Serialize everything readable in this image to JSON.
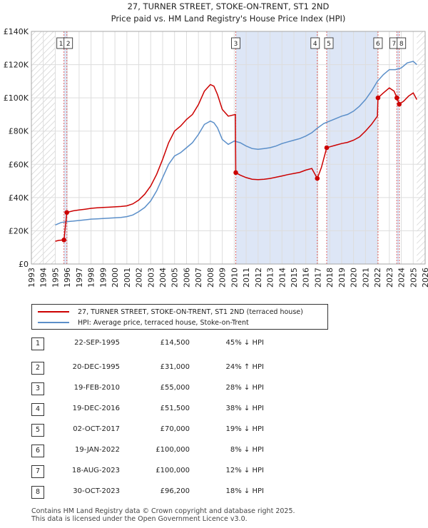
{
  "chart_data": {
    "type": "line",
    "title_line1": "27, TURNER STREET, STOKE-ON-TRENT, ST1 2ND",
    "title_line2": "Price paid vs. HM Land Registry's House Price Index (HPI)",
    "xlim": [
      1993,
      2026
    ],
    "ylim": [
      0,
      140000
    ],
    "y_ticks": [
      0,
      20000,
      40000,
      60000,
      80000,
      100000,
      120000,
      140000
    ],
    "y_tick_labels": [
      "£0",
      "£20K",
      "£40K",
      "£60K",
      "£80K",
      "£100K",
      "£120K",
      "£140K"
    ],
    "x_ticks": [
      1993,
      1994,
      1995,
      1996,
      1997,
      1998,
      1999,
      2000,
      2001,
      2002,
      2003,
      2004,
      2005,
      2006,
      2007,
      2008,
      2009,
      2010,
      2011,
      2012,
      2013,
      2014,
      2015,
      2016,
      2017,
      2018,
      2019,
      2020,
      2021,
      2022,
      2023,
      2024,
      2025,
      2026
    ],
    "data_start": 1995.0,
    "data_end": 2025.3,
    "hatch_before": 1995.0,
    "hatch_after": 2025.3,
    "shaded_periods": [
      [
        1995.73,
        1995.97
      ],
      [
        2010.13,
        2016.96
      ],
      [
        2017.75,
        2022.05
      ],
      [
        2023.63,
        2023.83
      ]
    ],
    "colors": {
      "property": "#cc0000",
      "hpi": "#5b8fc9",
      "shade": "#dde6f6",
      "marker_line": "#e06060"
    },
    "series": [
      {
        "name": "HPI: Average price, terraced house, Stoke-on-Trent",
        "points": [
          [
            1995.0,
            23500
          ],
          [
            1995.5,
            25000
          ],
          [
            1996.0,
            25500
          ],
          [
            1996.5,
            25800
          ],
          [
            1997.0,
            26200
          ],
          [
            1997.5,
            26600
          ],
          [
            1998.0,
            27000
          ],
          [
            1998.5,
            27200
          ],
          [
            1999.0,
            27400
          ],
          [
            1999.5,
            27600
          ],
          [
            2000.0,
            27800
          ],
          [
            2000.5,
            28000
          ],
          [
            2001.0,
            28500
          ],
          [
            2001.5,
            29500
          ],
          [
            2002.0,
            31500
          ],
          [
            2002.5,
            34000
          ],
          [
            2003.0,
            38000
          ],
          [
            2003.5,
            44000
          ],
          [
            2004.0,
            52000
          ],
          [
            2004.5,
            60000
          ],
          [
            2005.0,
            65000
          ],
          [
            2005.5,
            67000
          ],
          [
            2006.0,
            70000
          ],
          [
            2006.5,
            73000
          ],
          [
            2007.0,
            78000
          ],
          [
            2007.5,
            84000
          ],
          [
            2008.0,
            86000
          ],
          [
            2008.3,
            85000
          ],
          [
            2008.6,
            82000
          ],
          [
            2009.0,
            75000
          ],
          [
            2009.5,
            72000
          ],
          [
            2010.0,
            74000
          ],
          [
            2010.5,
            73000
          ],
          [
            2011.0,
            71000
          ],
          [
            2011.5,
            69500
          ],
          [
            2012.0,
            69000
          ],
          [
            2012.5,
            69500
          ],
          [
            2013.0,
            70000
          ],
          [
            2013.5,
            71000
          ],
          [
            2014.0,
            72500
          ],
          [
            2014.5,
            73500
          ],
          [
            2015.0,
            74500
          ],
          [
            2015.5,
            75500
          ],
          [
            2016.0,
            77000
          ],
          [
            2016.5,
            79000
          ],
          [
            2017.0,
            82000
          ],
          [
            2017.5,
            84500
          ],
          [
            2018.0,
            86000
          ],
          [
            2018.5,
            87500
          ],
          [
            2019.0,
            89000
          ],
          [
            2019.5,
            90000
          ],
          [
            2020.0,
            92000
          ],
          [
            2020.5,
            95000
          ],
          [
            2021.0,
            99000
          ],
          [
            2021.5,
            104000
          ],
          [
            2022.0,
            110000
          ],
          [
            2022.5,
            114000
          ],
          [
            2023.0,
            117000
          ],
          [
            2023.5,
            117000
          ],
          [
            2024.0,
            118000
          ],
          [
            2024.5,
            121000
          ],
          [
            2025.0,
            122000
          ],
          [
            2025.3,
            120000
          ]
        ]
      },
      {
        "name": "27, TURNER STREET, STOKE-ON-TRENT, ST1 2ND (terraced house)",
        "points": [
          [
            1995.0,
            13700
          ],
          [
            1995.3,
            14200
          ],
          [
            1995.73,
            14500
          ],
          [
            1995.97,
            31000
          ],
          [
            1996.5,
            32000
          ],
          [
            1997.0,
            32500
          ],
          [
            1997.5,
            33000
          ],
          [
            1998.0,
            33500
          ],
          [
            1998.5,
            33800
          ],
          [
            1999.0,
            34000
          ],
          [
            1999.5,
            34200
          ],
          [
            2000.0,
            34400
          ],
          [
            2000.5,
            34600
          ],
          [
            2001.0,
            35000
          ],
          [
            2001.5,
            36200
          ],
          [
            2002.0,
            38500
          ],
          [
            2002.5,
            42000
          ],
          [
            2003.0,
            47000
          ],
          [
            2003.5,
            54000
          ],
          [
            2004.0,
            63000
          ],
          [
            2004.5,
            73000
          ],
          [
            2005.0,
            80000
          ],
          [
            2005.5,
            83000
          ],
          [
            2006.0,
            87000
          ],
          [
            2006.5,
            90000
          ],
          [
            2007.0,
            96000
          ],
          [
            2007.5,
            104000
          ],
          [
            2008.0,
            108000
          ],
          [
            2008.3,
            107000
          ],
          [
            2008.6,
            102000
          ],
          [
            2009.0,
            93000
          ],
          [
            2009.5,
            89000
          ],
          [
            2010.1,
            90000
          ],
          [
            2010.13,
            55000
          ],
          [
            2010.5,
            53500
          ],
          [
            2011.0,
            52000
          ],
          [
            2011.5,
            51000
          ],
          [
            2012.0,
            50800
          ],
          [
            2012.5,
            51000
          ],
          [
            2013.0,
            51500
          ],
          [
            2013.5,
            52200
          ],
          [
            2014.0,
            53000
          ],
          [
            2014.5,
            53800
          ],
          [
            2015.0,
            54500
          ],
          [
            2015.5,
            55200
          ],
          [
            2016.0,
            56500
          ],
          [
            2016.5,
            57500
          ],
          [
            2016.96,
            51500
          ],
          [
            2017.3,
            58000
          ],
          [
            2017.75,
            70000
          ],
          [
            2018.0,
            70500
          ],
          [
            2018.5,
            71500
          ],
          [
            2019.0,
            72500
          ],
          [
            2019.5,
            73200
          ],
          [
            2020.0,
            74500
          ],
          [
            2020.5,
            76500
          ],
          [
            2021.0,
            80000
          ],
          [
            2021.5,
            84000
          ],
          [
            2022.0,
            89000
          ],
          [
            2022.05,
            100000
          ],
          [
            2022.5,
            103000
          ],
          [
            2023.0,
            106000
          ],
          [
            2023.4,
            104000
          ],
          [
            2023.63,
            100000
          ],
          [
            2023.83,
            96200
          ],
          [
            2024.2,
            98000
          ],
          [
            2024.6,
            101000
          ],
          [
            2025.0,
            103000
          ],
          [
            2025.3,
            99000
          ]
        ]
      }
    ],
    "transactions": [
      {
        "id": "1",
        "date": "22-SEP-1995",
        "price": "£14,500",
        "hpi": "45% ↓ HPI",
        "x": 1995.73,
        "y": 14500
      },
      {
        "id": "2",
        "date": "20-DEC-1995",
        "price": "£31,000",
        "hpi": "24% ↑ HPI",
        "x": 1995.97,
        "y": 31000
      },
      {
        "id": "3",
        "date": "19-FEB-2010",
        "price": "£55,000",
        "hpi": "28% ↓ HPI",
        "x": 2010.13,
        "y": 55000
      },
      {
        "id": "4",
        "date": "19-DEC-2016",
        "price": "£51,500",
        "hpi": "38% ↓ HPI",
        "x": 2016.96,
        "y": 51500
      },
      {
        "id": "5",
        "date": "02-OCT-2017",
        "price": "£70,000",
        "hpi": "19% ↓ HPI",
        "x": 2017.75,
        "y": 70000
      },
      {
        "id": "6",
        "date": "19-JAN-2022",
        "price": "£100,000",
        "hpi": "8% ↓ HPI",
        "x": 2022.05,
        "y": 100000
      },
      {
        "id": "7",
        "date": "18-AUG-2023",
        "price": "£100,000",
        "hpi": "12% ↓ HPI",
        "x": 2023.63,
        "y": 100000
      },
      {
        "id": "8",
        "date": "30-OCT-2023",
        "price": "£96,200",
        "hpi": "18% ↓ HPI",
        "x": 2023.83,
        "y": 96200
      }
    ]
  },
  "legend": {
    "property_label": "27, TURNER STREET, STOKE-ON-TRENT, ST1 2ND (terraced house)",
    "hpi_label": "HPI: Average price, terraced house, Stoke-on-Trent"
  },
  "footer": {
    "line1": "Contains HM Land Registry data © Crown copyright and database right 2025.",
    "line2": "This data is licensed under the Open Government Licence v3.0."
  }
}
